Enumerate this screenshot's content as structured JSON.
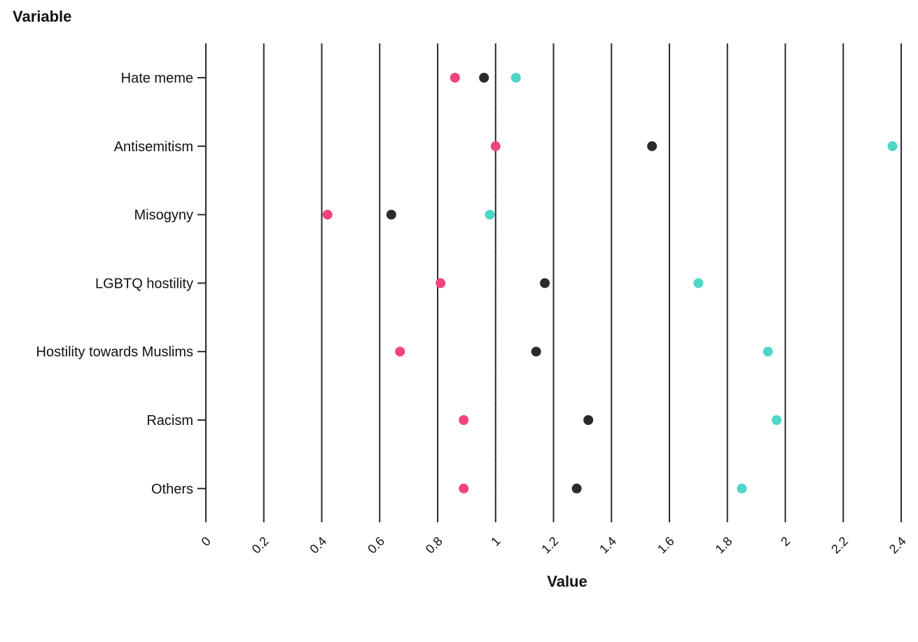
{
  "chart_data": {
    "type": "scatter",
    "title": "",
    "ylabel": "Variable",
    "xlabel": "Value",
    "xlim": [
      0,
      2.4
    ],
    "x_ticks": [
      0,
      0.2,
      0.4,
      0.6,
      0.8,
      1,
      1.2,
      1.4,
      1.6,
      1.8,
      2,
      2.2,
      2.4
    ],
    "x_tick_labels": [
      "0",
      "0.2",
      "0.4",
      "0.6",
      "0.8",
      "1",
      "1.2",
      "1.4",
      "1.6",
      "1.8",
      "2",
      "2.2",
      "2.4"
    ],
    "reference_line": 1,
    "grid": "vertical",
    "categories": [
      "Hate meme",
      "Antisemitism",
      "Misogyny",
      "LGBTQ hostility",
      "Hostility towards Muslims",
      "Racism",
      "Others"
    ],
    "series": [
      {
        "color": "#f0457a",
        "values": [
          0.86,
          1.0,
          0.42,
          0.81,
          0.67,
          0.89,
          0.89
        ]
      },
      {
        "color": "#2b2b2b",
        "values": [
          0.96,
          1.54,
          0.64,
          1.17,
          1.14,
          1.32,
          1.28
        ]
      },
      {
        "color": "#4ed6c6",
        "values": [
          1.07,
          2.37,
          0.98,
          1.7,
          1.94,
          1.97,
          1.85
        ]
      }
    ]
  }
}
